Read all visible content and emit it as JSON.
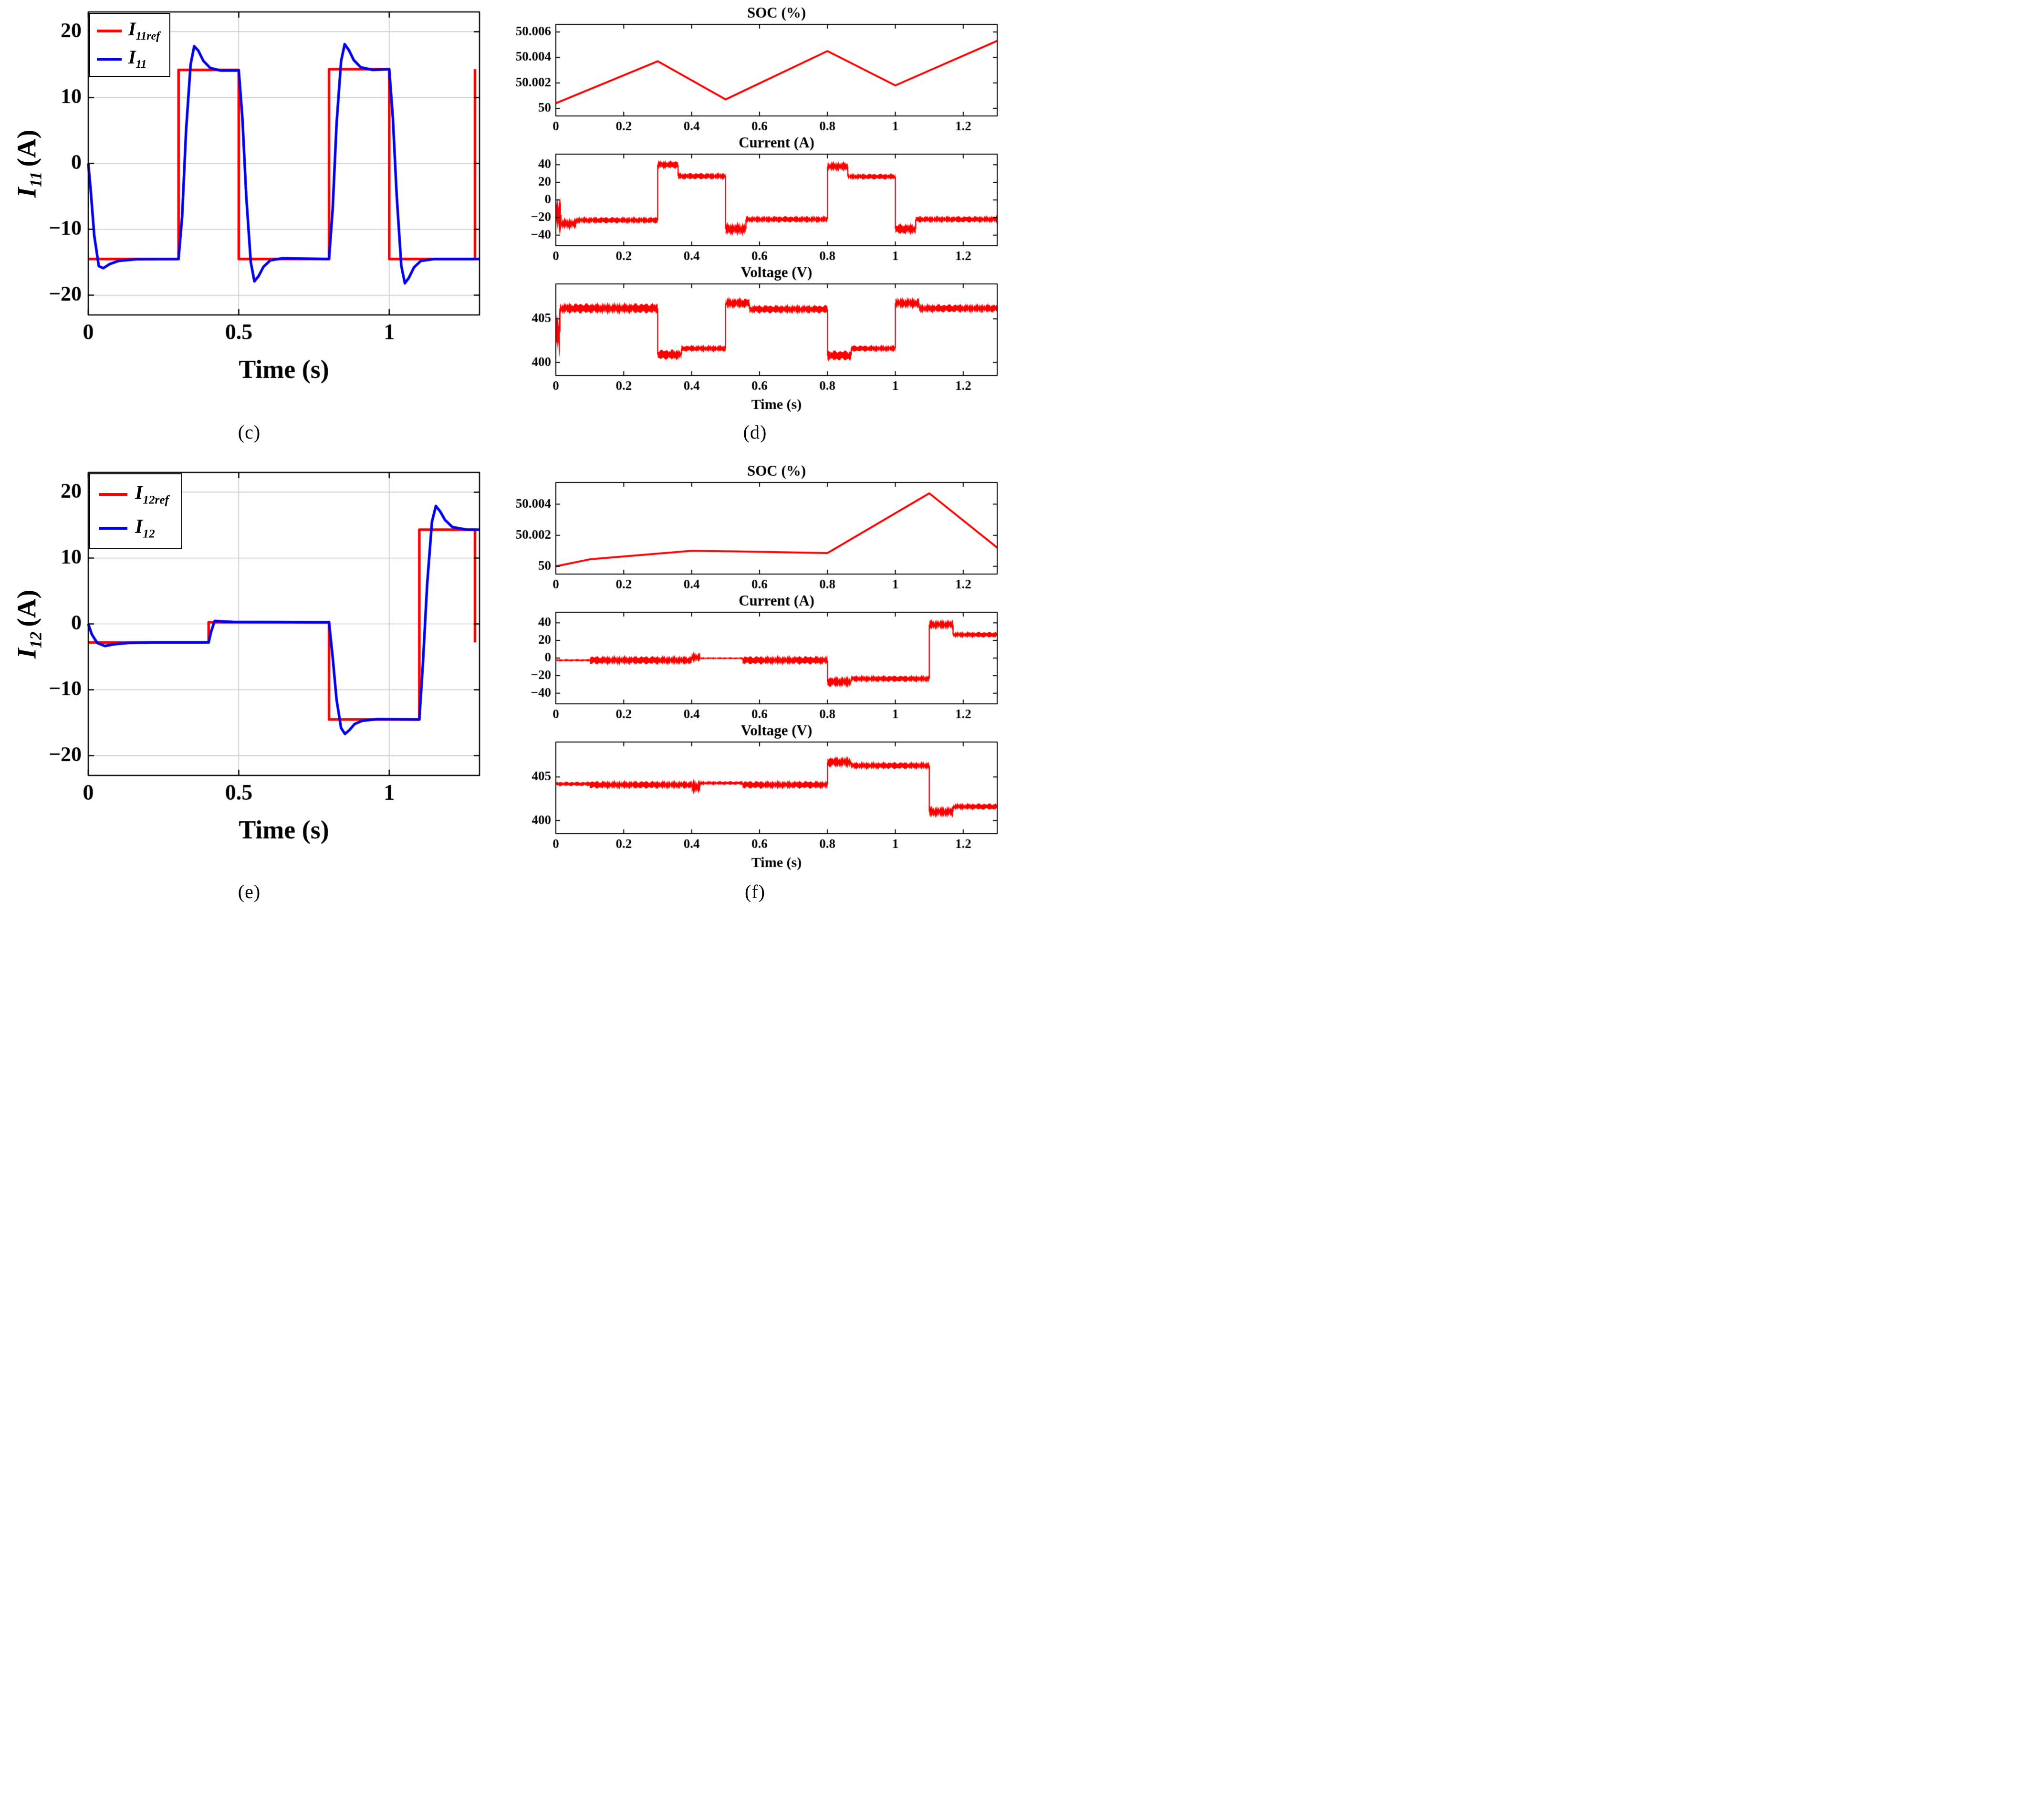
{
  "colors": {
    "ref": "#ff0000",
    "meas": "#0000ee",
    "grid": "#c7c7c7",
    "axes": "#000000"
  },
  "panels": {
    "c": {
      "caption": "(c)",
      "ylabel": {
        "main": "I",
        "sub": "11",
        "unit": "(A)"
      },
      "legend": [
        {
          "main": "I",
          "sub": "11ref"
        },
        {
          "main": "I",
          "sub": "11"
        }
      ]
    },
    "d": {
      "caption": "(d)"
    },
    "e": {
      "caption": "(e)",
      "ylabel": {
        "main": "I",
        "sub": "12",
        "unit": "(A)"
      },
      "legend": [
        {
          "main": "I",
          "sub": "12ref"
        },
        {
          "main": "I",
          "sub": "12"
        }
      ]
    },
    "f": {
      "caption": "(f)"
    }
  },
  "chart_data": [
    {
      "id": "c",
      "type": "line",
      "title": "",
      "xlabel": "Time (s)",
      "ylabel": "I_11 (A)",
      "xlim": [
        0,
        1.3
      ],
      "ylim": [
        -23,
        23
      ],
      "xticks": [
        0,
        0.5,
        1
      ],
      "xtick_labels": [
        "0",
        "0.5",
        "1"
      ],
      "yticks": [
        -20,
        -10,
        0,
        10,
        20
      ],
      "ytick_labels": [
        "−20",
        "−10",
        "0",
        "10",
        "20"
      ],
      "grid": true,
      "legend": [
        "I11ref",
        "I11"
      ],
      "series": [
        {
          "name": "I11ref",
          "color": "#ff0000",
          "lw": 5.5,
          "points": [
            [
              0,
              -14.5
            ],
            [
              0.3,
              -14.5
            ],
            [
              0.3,
              14.2
            ],
            [
              0.5,
              14.2
            ],
            [
              0.5,
              -14.5
            ],
            [
              0.8,
              -14.5
            ],
            [
              0.8,
              14.3
            ],
            [
              1.0,
              14.3
            ],
            [
              1.0,
              -14.5
            ],
            [
              1.285,
              -14.5
            ],
            [
              1.285,
              14.3
            ]
          ]
        },
        {
          "name": "I11",
          "color": "#0000ee",
          "lw": 5.5,
          "points": [
            [
              0,
              0
            ],
            [
              0.008,
              -4
            ],
            [
              0.02,
              -11
            ],
            [
              0.035,
              -15.6
            ],
            [
              0.05,
              -15.9
            ],
            [
              0.07,
              -15.3
            ],
            [
              0.1,
              -14.8
            ],
            [
              0.16,
              -14.55
            ],
            [
              0.3,
              -14.5
            ],
            [
              0.312,
              -8
            ],
            [
              0.325,
              5
            ],
            [
              0.34,
              15
            ],
            [
              0.352,
              17.8
            ],
            [
              0.366,
              17.1
            ],
            [
              0.382,
              15.6
            ],
            [
              0.405,
              14.5
            ],
            [
              0.44,
              14.1
            ],
            [
              0.5,
              14.1
            ],
            [
              0.512,
              7
            ],
            [
              0.525,
              -5
            ],
            [
              0.54,
              -15
            ],
            [
              0.552,
              -17.9
            ],
            [
              0.566,
              -17.1
            ],
            [
              0.582,
              -15.7
            ],
            [
              0.605,
              -14.7
            ],
            [
              0.645,
              -14.4
            ],
            [
              0.8,
              -14.5
            ],
            [
              0.812,
              -7
            ],
            [
              0.825,
              6
            ],
            [
              0.84,
              15.5
            ],
            [
              0.852,
              18.1
            ],
            [
              0.866,
              17.2
            ],
            [
              0.882,
              15.7
            ],
            [
              0.905,
              14.6
            ],
            [
              0.945,
              14.2
            ],
            [
              1.0,
              14.3
            ],
            [
              1.012,
              7
            ],
            [
              1.025,
              -5
            ],
            [
              1.04,
              -15.5
            ],
            [
              1.052,
              -18.2
            ],
            [
              1.066,
              -17.3
            ],
            [
              1.082,
              -15.8
            ],
            [
              1.105,
              -14.8
            ],
            [
              1.15,
              -14.5
            ],
            [
              1.3,
              -14.5
            ]
          ]
        }
      ]
    },
    {
      "id": "d",
      "type": "stack",
      "xlabel": "Time (s)",
      "xlim": [
        0,
        1.3
      ],
      "xticks": [
        0,
        0.2,
        0.4,
        0.6,
        0.8,
        1,
        1.2
      ],
      "xtick_labels": [
        "0",
        "0.2",
        "0.4",
        "0.6",
        "0.8",
        "1",
        "1.2"
      ],
      "subplots": [
        {
          "title": "SOC (%)",
          "ylim": [
            49.9994,
            50.0066
          ],
          "yticks": [
            50,
            50.002,
            50.004,
            50.006
          ],
          "ytick_labels": [
            "50",
            "50.002",
            "50.004",
            "50.006"
          ],
          "line": {
            "color": "#ff0000",
            "lw": 4,
            "points": [
              [
                0,
                50.0004
              ],
              [
                0.3,
                50.0037
              ],
              [
                0.5,
                50.0007
              ],
              [
                0.8,
                50.0045
              ],
              [
                1.0,
                50.0018
              ],
              [
                1.3,
                50.0053
              ]
            ]
          }
        },
        {
          "title": "Current (A)",
          "ylim": [
            -52,
            52
          ],
          "yticks": [
            -40,
            -20,
            0,
            20,
            40
          ],
          "ytick_labels": [
            "−40",
            "−20",
            "0",
            "20",
            "40"
          ],
          "band": {
            "color": "#ff0000",
            "segments": [
              [
                0,
                0.015,
                -17,
                27
              ],
              [
                0.015,
                0.06,
                -27,
                8
              ],
              [
                0.06,
                0.3,
                -23,
                5
              ],
              [
                0.3,
                0.36,
                40,
                6
              ],
              [
                0.36,
                0.5,
                27,
                5
              ],
              [
                0.5,
                0.56,
                -33,
                9
              ],
              [
                0.56,
                0.8,
                -22,
                5
              ],
              [
                0.8,
                0.86,
                38,
                7
              ],
              [
                0.86,
                1.0,
                26.5,
                4.5
              ],
              [
                1.0,
                1.06,
                -33,
                8
              ],
              [
                1.06,
                1.3,
                -22,
                5
              ]
            ]
          }
        },
        {
          "title": "Voltage (V)",
          "ylim": [
            398.5,
            409
          ],
          "yticks": [
            400,
            405
          ],
          "ytick_labels": [
            "400",
            "405"
          ],
          "band": {
            "color": "#ff0000",
            "segments": [
              [
                0,
                0.012,
                403.5,
                3.5
              ],
              [
                0.012,
                0.3,
                406.2,
                0.8
              ],
              [
                0.3,
                0.37,
                400.9,
                0.8
              ],
              [
                0.37,
                0.5,
                401.6,
                0.5
              ],
              [
                0.5,
                0.57,
                406.8,
                0.8
              ],
              [
                0.57,
                0.8,
                406.1,
                0.65
              ],
              [
                0.8,
                0.87,
                400.8,
                0.8
              ],
              [
                0.87,
                1.0,
                401.6,
                0.5
              ],
              [
                1.0,
                1.07,
                406.8,
                0.8
              ],
              [
                1.07,
                1.3,
                406.2,
                0.65
              ]
            ]
          }
        }
      ]
    },
    {
      "id": "e",
      "type": "line",
      "title": "",
      "xlabel": "Time (s)",
      "ylabel": "I_12 (A)",
      "xlim": [
        0,
        1.3
      ],
      "ylim": [
        -23,
        23
      ],
      "xticks": [
        0,
        0.5,
        1
      ],
      "xtick_labels": [
        "0",
        "0.5",
        "1"
      ],
      "yticks": [
        -20,
        -10,
        0,
        10,
        20
      ],
      "ytick_labels": [
        "−20",
        "−10",
        "0",
        "10",
        "20"
      ],
      "grid": true,
      "legend": [
        "I12ref",
        "I12"
      ],
      "series": [
        {
          "name": "I12ref",
          "color": "#ff0000",
          "lw": 5.5,
          "points": [
            [
              0,
              -2.8
            ],
            [
              0.4,
              -2.8
            ],
            [
              0.4,
              0.25
            ],
            [
              0.8,
              0.25
            ],
            [
              0.8,
              -14.5
            ],
            [
              1.1,
              -14.5
            ],
            [
              1.1,
              14.3
            ],
            [
              1.285,
              14.3
            ],
            [
              1.285,
              -2.8
            ]
          ]
        },
        {
          "name": "I12",
          "color": "#0000ee",
          "lw": 5.5,
          "points": [
            [
              0,
              0
            ],
            [
              0.012,
              -1.6
            ],
            [
              0.03,
              -2.9
            ],
            [
              0.055,
              -3.35
            ],
            [
              0.085,
              -3.1
            ],
            [
              0.13,
              -2.9
            ],
            [
              0.22,
              -2.8
            ],
            [
              0.4,
              -2.8
            ],
            [
              0.408,
              -1.2
            ],
            [
              0.42,
              0.45
            ],
            [
              0.44,
              0.4
            ],
            [
              0.48,
              0.3
            ],
            [
              0.8,
              0.25
            ],
            [
              0.812,
              -5
            ],
            [
              0.825,
              -11.5
            ],
            [
              0.84,
              -15.8
            ],
            [
              0.853,
              -16.7
            ],
            [
              0.868,
              -16.1
            ],
            [
              0.885,
              -15.2
            ],
            [
              0.91,
              -14.7
            ],
            [
              0.96,
              -14.45
            ],
            [
              1.1,
              -14.5
            ],
            [
              1.112,
              -6
            ],
            [
              1.126,
              6
            ],
            [
              1.142,
              15.5
            ],
            [
              1.155,
              17.9
            ],
            [
              1.169,
              17.1
            ],
            [
              1.185,
              15.8
            ],
            [
              1.21,
              14.7
            ],
            [
              1.26,
              14.3
            ],
            [
              1.3,
              14.3
            ]
          ]
        }
      ]
    },
    {
      "id": "f",
      "type": "stack",
      "xlabel": "Time (s)",
      "xlim": [
        0,
        1.3
      ],
      "xticks": [
        0,
        0.2,
        0.4,
        0.6,
        0.8,
        1,
        1.2
      ],
      "xtick_labels": [
        "0",
        "0.2",
        "0.4",
        "0.6",
        "0.8",
        "1",
        "1.2"
      ],
      "subplots": [
        {
          "title": "SOC (%)",
          "ylim": [
            49.9995,
            50.0054
          ],
          "yticks": [
            50,
            50.002,
            50.004
          ],
          "ytick_labels": [
            "50",
            "50.002",
            "50.004"
          ],
          "line": {
            "color": "#ff0000",
            "lw": 4,
            "points": [
              [
                0,
                50.0
              ],
              [
                0.1,
                50.00045
              ],
              [
                0.4,
                50.001
              ],
              [
                0.55,
                50.00095
              ],
              [
                0.8,
                50.00085
              ],
              [
                1.1,
                50.0047
              ],
              [
                1.3,
                50.0012
              ]
            ]
          }
        },
        {
          "title": "Current (A)",
          "ylim": [
            -52,
            52
          ],
          "yticks": [
            -40,
            -20,
            0,
            20,
            40
          ],
          "ytick_labels": [
            "−40",
            "−20",
            "0",
            "20",
            "40"
          ],
          "band": {
            "color": "#ff0000",
            "segments": [
              [
                0,
                0.1,
                -2.5,
                1.8
              ],
              [
                0.1,
                0.4,
                -2.5,
                6.5
              ],
              [
                0.4,
                0.425,
                1,
                7
              ],
              [
                0.425,
                0.55,
                -0.2,
                1.5
              ],
              [
                0.55,
                0.8,
                -2.5,
                6.5
              ],
              [
                0.8,
                0.87,
                -27,
                8
              ],
              [
                0.87,
                1.1,
                -23.5,
                5
              ],
              [
                1.1,
                1.17,
                38,
                7
              ],
              [
                1.17,
                1.3,
                26.5,
                4.5
              ]
            ]
          }
        },
        {
          "title": "Voltage (V)",
          "ylim": [
            398.5,
            409
          ],
          "yticks": [
            400,
            405
          ],
          "ytick_labels": [
            "400",
            "405"
          ],
          "band": {
            "color": "#ff0000",
            "segments": [
              [
                0,
                0.1,
                404.2,
                0.35
              ],
              [
                0.1,
                0.4,
                404.1,
                0.6
              ],
              [
                0.4,
                0.425,
                403.9,
                1.0
              ],
              [
                0.425,
                0.55,
                404.3,
                0.3
              ],
              [
                0.55,
                0.8,
                404.1,
                0.6
              ],
              [
                0.8,
                0.87,
                406.7,
                0.8
              ],
              [
                0.87,
                1.1,
                406.3,
                0.55
              ],
              [
                1.1,
                1.17,
                401.0,
                0.8
              ],
              [
                1.17,
                1.3,
                401.6,
                0.5
              ]
            ]
          }
        }
      ]
    }
  ]
}
